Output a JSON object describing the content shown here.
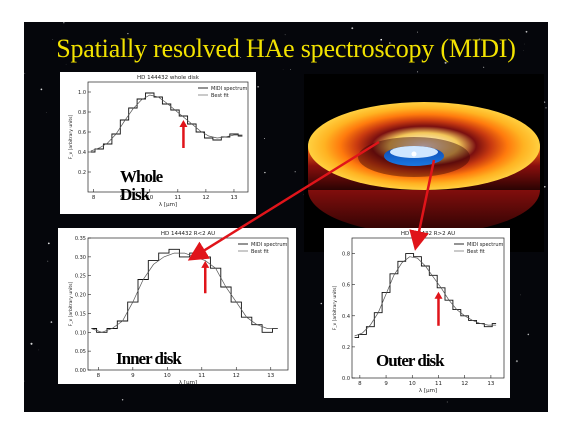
{
  "slide": {
    "title": "Spatially resolved HAe spectroscopy (MIDI)",
    "colors": {
      "background": "#05060b",
      "title": "#f2e200",
      "arrow": "#e0141a"
    }
  },
  "panels": [
    {
      "id": "whole",
      "plot_title": "HD 144432 whole disk",
      "overlay_label_line1": "Whole",
      "overlay_label_line2": "Disk",
      "legend": [
        "MIDI spectrum",
        "Best fit"
      ],
      "xlabel": "λ [μm]",
      "ylabel": "F_ν [arbitrary units]",
      "xticks": [
        "8",
        "9",
        "10",
        "11",
        "12",
        "13"
      ],
      "yticks": [
        "0.2",
        "0.4",
        "0.6",
        "0.8",
        "1.0"
      ]
    },
    {
      "id": "inner",
      "plot_title": "HD 144432 R<2 AU",
      "overlay_label": "Inner disk",
      "legend": [
        "MIDI spectrum",
        "Best fit"
      ],
      "xlabel": "λ [μm]",
      "ylabel": "F_ν [arbitrary units]",
      "xticks": [
        "8",
        "9",
        "10",
        "11",
        "12",
        "13"
      ],
      "yticks": [
        "0.00",
        "0.05",
        "0.10",
        "0.15",
        "0.20",
        "0.25",
        "0.30",
        "0.35"
      ]
    },
    {
      "id": "outer",
      "plot_title": "HD 144432 R>2 AU",
      "overlay_label": "Outer disk",
      "legend": [
        "MIDI spectrum",
        "Best fit"
      ],
      "xlabel": "λ [μm]",
      "ylabel": "F_ν [arbitrary units]",
      "xticks": [
        "8",
        "9",
        "10",
        "11",
        "12",
        "13"
      ],
      "yticks": [
        "0.0",
        "0.2",
        "0.4",
        "0.6",
        "0.8"
      ]
    }
  ],
  "chart_data": [
    {
      "type": "line",
      "title": "HD 144432 whole disk",
      "xlabel": "λ [μm]",
      "ylabel": "F_ν [arbitrary units]",
      "xlim": [
        7.8,
        13.5
      ],
      "ylim": [
        0.0,
        1.1
      ],
      "x": [
        7.9,
        8.2,
        8.5,
        8.8,
        9.1,
        9.4,
        9.7,
        10.0,
        10.3,
        10.6,
        10.9,
        11.2,
        11.5,
        11.8,
        12.1,
        12.4,
        12.7,
        13.0,
        13.3
      ],
      "series": [
        {
          "name": "MIDI spectrum",
          "values": [
            0.4,
            0.43,
            0.48,
            0.58,
            0.72,
            0.84,
            0.93,
            0.99,
            0.95,
            0.88,
            0.82,
            0.76,
            0.68,
            0.6,
            0.54,
            0.52,
            0.55,
            0.58,
            0.56
          ]
        },
        {
          "name": "Best fit",
          "values": [
            0.41,
            0.44,
            0.49,
            0.58,
            0.71,
            0.83,
            0.92,
            0.97,
            0.95,
            0.89,
            0.82,
            0.75,
            0.68,
            0.61,
            0.56,
            0.54,
            0.55,
            0.57,
            0.57
          ]
        }
      ],
      "arrow_at_x": 11.2
    },
    {
      "type": "line",
      "title": "HD 144432 R<2 AU",
      "xlabel": "λ [μm]",
      "ylabel": "F_ν [arbitrary units]",
      "xlim": [
        7.7,
        13.5
      ],
      "ylim": [
        0.0,
        0.35
      ],
      "x": [
        7.8,
        8.1,
        8.4,
        8.7,
        9.0,
        9.3,
        9.6,
        9.9,
        10.2,
        10.5,
        10.8,
        11.1,
        11.4,
        11.7,
        12.0,
        12.3,
        12.6,
        12.9,
        13.2
      ],
      "series": [
        {
          "name": "MIDI spectrum",
          "values": [
            0.11,
            0.1,
            0.11,
            0.13,
            0.18,
            0.24,
            0.29,
            0.31,
            0.32,
            0.3,
            0.31,
            0.3,
            0.27,
            0.22,
            0.18,
            0.14,
            0.12,
            0.1,
            0.11
          ]
        },
        {
          "name": "Best fit",
          "values": [
            0.11,
            0.1,
            0.11,
            0.13,
            0.18,
            0.24,
            0.28,
            0.3,
            0.31,
            0.31,
            0.3,
            0.29,
            0.27,
            0.22,
            0.18,
            0.14,
            0.12,
            0.11,
            0.11
          ]
        }
      ],
      "arrow_at_x": 11.1
    },
    {
      "type": "line",
      "title": "HD 144432 R>2 AU",
      "xlabel": "λ [μm]",
      "ylabel": "F_ν [arbitrary units]",
      "xlim": [
        7.7,
        13.5
      ],
      "ylim": [
        0.0,
        0.9
      ],
      "x": [
        7.8,
        8.1,
        8.4,
        8.7,
        9.0,
        9.3,
        9.6,
        9.9,
        10.2,
        10.5,
        10.8,
        11.1,
        11.4,
        11.7,
        12.0,
        12.3,
        12.6,
        12.9,
        13.2
      ],
      "series": [
        {
          "name": "MIDI spectrum",
          "values": [
            0.26,
            0.28,
            0.33,
            0.42,
            0.55,
            0.67,
            0.75,
            0.8,
            0.78,
            0.72,
            0.66,
            0.58,
            0.5,
            0.44,
            0.4,
            0.37,
            0.35,
            0.33,
            0.35
          ]
        },
        {
          "name": "Best fit",
          "values": [
            0.27,
            0.29,
            0.34,
            0.42,
            0.54,
            0.66,
            0.74,
            0.78,
            0.77,
            0.72,
            0.65,
            0.58,
            0.5,
            0.44,
            0.4,
            0.37,
            0.35,
            0.34,
            0.34
          ]
        }
      ],
      "arrow_at_x": 11.0
    }
  ]
}
